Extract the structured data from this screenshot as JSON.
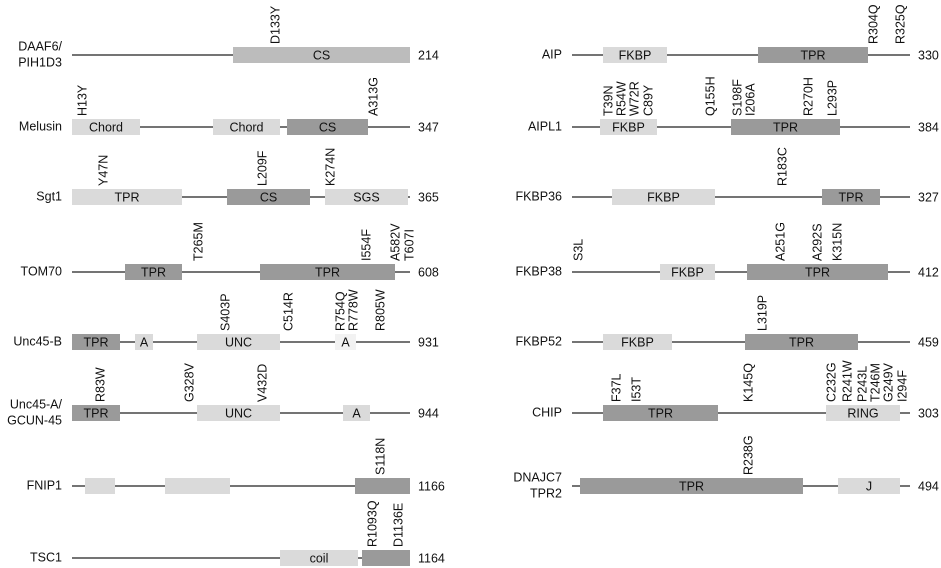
{
  "proteins": [
    {
      "name": [
        "DAAF6/",
        "PIH1D3"
      ],
      "length": 214,
      "domains": [
        "CS"
      ],
      "mutations": [
        "D133Y"
      ]
    },
    {
      "name": [
        "Melusin"
      ],
      "length": 347,
      "domains": [
        "Chord",
        "Chord",
        "CS"
      ],
      "mutations": [
        "H13Y",
        "A313G"
      ]
    },
    {
      "name": [
        "Sgt1"
      ],
      "length": 365,
      "domains": [
        "TPR",
        "CS",
        "SGS"
      ],
      "mutations": [
        "Y47N",
        "L209F",
        "K274N"
      ]
    },
    {
      "name": [
        "TOM70"
      ],
      "length": 608,
      "domains": [
        "TPR",
        "TPR"
      ],
      "mutations": [
        "T265M",
        "I554F",
        "A582V",
        "T607I"
      ]
    },
    {
      "name": [
        "Unc45-B"
      ],
      "length": 931,
      "domains": [
        "TPR",
        "A",
        "UNC",
        "A"
      ],
      "mutations": [
        "S403P",
        "C514R",
        "R754Q",
        "R778W",
        "R805W"
      ]
    },
    {
      "name": [
        "Unc45-A/",
        "GCUN-45"
      ],
      "length": 944,
      "domains": [
        "TPR",
        "UNC",
        "A"
      ],
      "mutations": [
        "R83W",
        "G328V",
        "V432D"
      ]
    },
    {
      "name": [
        "FNIP1"
      ],
      "length": 1166,
      "domains": [],
      "mutations": [
        "S118N"
      ]
    },
    {
      "name": [
        "TSC1"
      ],
      "length": 1164,
      "domains": [
        "coil"
      ],
      "mutations": [
        "R1093Q",
        "D1136E"
      ]
    },
    {
      "name": [
        "AIP"
      ],
      "length": 330,
      "domains": [
        "FKBP",
        "TPR"
      ],
      "mutations": [
        "R304Q",
        "R325Q"
      ]
    },
    {
      "name": [
        "AIPL1"
      ],
      "length": 384,
      "domains": [
        "FKBP",
        "TPR"
      ],
      "mutations": [
        "T39N",
        "R54W",
        "W72R",
        "C89Y",
        "Q155H",
        "S198F",
        "I206A",
        "R270H",
        "L293P"
      ]
    },
    {
      "name": [
        "FKBP36"
      ],
      "length": 327,
      "domains": [
        "FKBP",
        "TPR"
      ],
      "mutations": [
        "R183C"
      ]
    },
    {
      "name": [
        "FKBP38"
      ],
      "length": 412,
      "domains": [
        "FKBP",
        "TPR"
      ],
      "mutations": [
        "S3L",
        "A251G",
        "A292S",
        "K315N"
      ]
    },
    {
      "name": [
        "FKBP52"
      ],
      "length": 459,
      "domains": [
        "FKBP",
        "TPR"
      ],
      "mutations": [
        "L319P"
      ]
    },
    {
      "name": [
        "CHIP"
      ],
      "length": 303,
      "domains": [
        "TPR",
        "RING"
      ],
      "mutations": [
        "F37L",
        "I53T",
        "K145Q",
        "C232G",
        "R241W",
        "P243L",
        "T246M",
        "G249V",
        "I294F"
      ]
    },
    {
      "name": [
        "DNAJC7",
        "TPR2"
      ],
      "length": 494,
      "domains": [
        "TPR",
        "J"
      ],
      "mutations": [
        "R238G"
      ]
    }
  ]
}
